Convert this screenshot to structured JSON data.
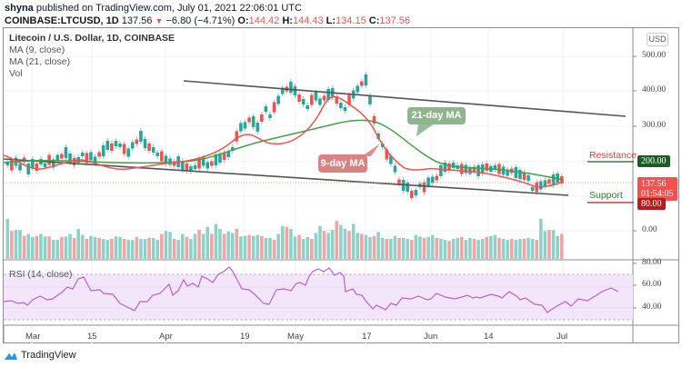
{
  "header": {
    "author": "shyna",
    "published_text": "published on TradingView.com, July 01, 2021 22:06:01 UTC",
    "symbol": "COINBASE:LTCUSD, 1D",
    "last": "137.56",
    "change": "−6.80 (−4.71%)",
    "o_label": "O:",
    "o": "144.42",
    "h_label": "H:",
    "h": "144.43",
    "l_label": "L:",
    "l": "134.15",
    "c_label": "C:",
    "c": "137.56"
  },
  "legend": {
    "title": "Litecoin / U.S. Dollar, 1D, COINBASE",
    "ma9": "MA (9, close)",
    "ma21": "MA (21, close)",
    "vol": "Vol"
  },
  "price_axis": {
    "currency": "USD",
    "ticks": [
      "500.00",
      "400.00",
      "300.00",
      "0.00"
    ],
    "resistance_label": "Resistance",
    "resistance_value": "200.00",
    "support_label": "Support",
    "support_value": "80.00",
    "last_price": "137.56",
    "countdown": "01:54:05"
  },
  "rsi": {
    "label": "RSI (14, close)",
    "ticks": [
      "80.00",
      "60.00",
      "40.00"
    ]
  },
  "annotations": {
    "ma21_bubble": "21-day MA",
    "ma9_bubble": "9-day MA"
  },
  "x_axis": [
    "Mar",
    "15",
    "Apr",
    "19",
    "May",
    "17",
    "Jun",
    "14",
    "Jul"
  ],
  "footer": {
    "brand": "TradingView"
  },
  "colors": {
    "up": "#26a69a",
    "down": "#ef5350",
    "ma9": "#ef5350",
    "ma21": "#43a047",
    "rsi_line": "#b660cd",
    "rsi_band": "#f3e6fb",
    "resistance": "#1b5e20",
    "support": "#b71c1c"
  },
  "chart_data": {
    "type": "candlestick",
    "title": "Litecoin / U.S. Dollar, 1D, COINBASE",
    "x_ticks": [
      "Mar",
      "15",
      "Apr",
      "19",
      "May",
      "17",
      "Jun",
      "14",
      "Jul"
    ],
    "ylim": [
      -50,
      560
    ],
    "y_ticks": [
      0,
      300,
      400,
      500
    ],
    "last_close": 137.56,
    "ohlc_last": {
      "open": 144.42,
      "high": 144.43,
      "low": 134.15,
      "close": 137.56,
      "change": -6.8,
      "change_pct": -4.71
    },
    "levels": {
      "resistance": 200,
      "support": 80
    },
    "series": [
      {
        "name": "MA (9, close)",
        "approx_path": [
          185,
          175,
          170,
          178,
          185,
          180,
          188,
          200,
          230,
          260,
          250,
          270,
          300,
          350,
          370,
          340,
          290,
          230,
          190,
          180,
          175,
          170,
          165,
          160,
          150,
          135,
          135
        ]
      },
      {
        "name": "MA (21, close)",
        "approx_path": [
          185,
          185,
          182,
          180,
          180,
          182,
          185,
          200,
          225,
          250,
          260,
          280,
          315,
          320,
          310,
          280,
          240,
          200,
          185,
          180,
          175,
          172,
          168,
          165,
          155,
          150
        ]
      }
    ],
    "rsi": {
      "name": "RSI (14, close)",
      "ylim": [
        20,
        85
      ],
      "bands": [
        30,
        70
      ],
      "approx_path": [
        52,
        50,
        48,
        52,
        55,
        60,
        65,
        58,
        56,
        52,
        48,
        40,
        50,
        55,
        60,
        70,
        62,
        72,
        75,
        72,
        58,
        52,
        40,
        52,
        55,
        62,
        75,
        78,
        70,
        60,
        58,
        52,
        48,
        45,
        42,
        45,
        48,
        46,
        45,
        48,
        44,
        40,
        35,
        42,
        48,
        44
      ]
    },
    "annotations": [
      "21-day MA",
      "9-day MA",
      "Resistance 200.00",
      "Support 80.00"
    ],
    "channel": {
      "upper": "descending from ~480 (Apr) to ~330 (Jul)",
      "lower": "descending from ~200 (Apr) to ~100 (Jul)"
    }
  }
}
